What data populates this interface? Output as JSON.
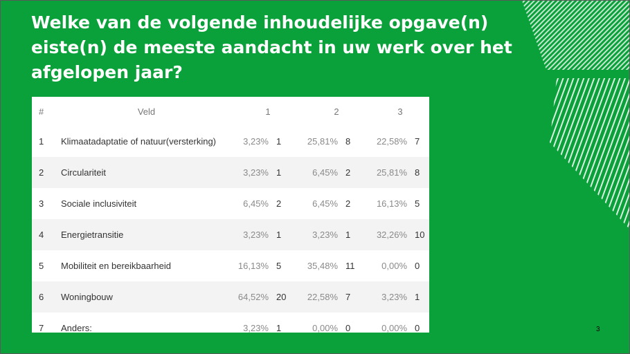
{
  "slide": {
    "title": "Welke van de volgende inhoudelijke opgave(n) eiste(n) de meeste aandacht in uw werk over het afgelopen jaar?",
    "page_number": "3"
  },
  "table": {
    "headers": {
      "index": "#",
      "field": "Veld",
      "g1": "1",
      "g2": "2",
      "g3": "3"
    },
    "rows": [
      {
        "index": "1",
        "label": "Klimaatadaptatie of natuur(versterking)",
        "p1": "3,23%",
        "n1": "1",
        "p2": "25,81%",
        "n2": "8",
        "p3": "22,58%",
        "n3": "7"
      },
      {
        "index": "2",
        "label": "Circulariteit",
        "p1": "3,23%",
        "n1": "1",
        "p2": "6,45%",
        "n2": "2",
        "p3": "25,81%",
        "n3": "8"
      },
      {
        "index": "3",
        "label": "Sociale inclusiviteit",
        "p1": "6,45%",
        "n1": "2",
        "p2": "6,45%",
        "n2": "2",
        "p3": "16,13%",
        "n3": "5"
      },
      {
        "index": "4",
        "label": "Energietransitie",
        "p1": "3,23%",
        "n1": "1",
        "p2": "3,23%",
        "n2": "1",
        "p3": "32,26%",
        "n3": "10"
      },
      {
        "index": "5",
        "label": "Mobiliteit en bereikbaarheid",
        "p1": "16,13%",
        "n1": "5",
        "p2": "35,48%",
        "n2": "11",
        "p3": "0,00%",
        "n3": "0"
      },
      {
        "index": "6",
        "label": "Woningbouw",
        "p1": "64,52%",
        "n1": "20",
        "p2": "22,58%",
        "n2": "7",
        "p3": "3,23%",
        "n3": "1"
      },
      {
        "index": "7",
        "label": "Anders:",
        "p1": "3,23%",
        "n1": "1",
        "p2": "0,00%",
        "n2": "0",
        "p3": "0,00%",
        "n3": "0"
      }
    ]
  },
  "colors": {
    "background": "#0aa03a",
    "title": "#ffffff"
  }
}
